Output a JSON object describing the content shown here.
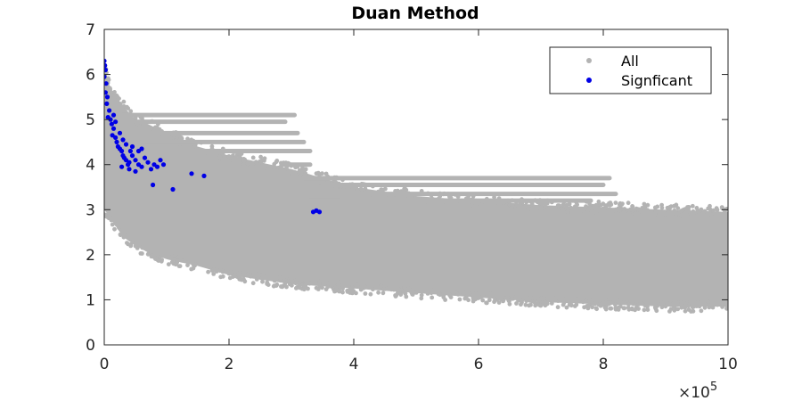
{
  "chart_data": {
    "type": "scatter",
    "title": "Duan Method",
    "xlabel": "",
    "ylabel": "",
    "xlim": [
      0,
      10
    ],
    "ylim": [
      0,
      7
    ],
    "x_ticks": [
      "0",
      "2",
      "4",
      "6",
      "8",
      "10"
    ],
    "y_ticks": [
      "0",
      "1",
      "2",
      "3",
      "4",
      "5",
      "6",
      "7"
    ],
    "x_multiplier": "×10",
    "x_multiplier_exponent": "5",
    "legend_position": "top-right",
    "grid": false,
    "series": [
      {
        "name": "All",
        "color": "#b3b3b3",
        "envelope": {
          "x": [
            0,
            0.05,
            0.1,
            0.2,
            0.3,
            0.5,
            0.7,
            1.0,
            1.5,
            2.0,
            3.0,
            4.0,
            5.0,
            6.0,
            7.0,
            8.0,
            9.0,
            10.0
          ],
          "upper": [
            6.4,
            5.9,
            5.7,
            5.5,
            5.3,
            5.0,
            4.9,
            4.7,
            4.4,
            4.2,
            3.9,
            3.5,
            3.3,
            3.2,
            3.1,
            3.05,
            3.0,
            2.95
          ],
          "lower": [
            3.0,
            2.9,
            2.8,
            2.6,
            2.4,
            2.2,
            2.05,
            1.9,
            1.75,
            1.55,
            1.35,
            1.25,
            1.15,
            1.05,
            0.95,
            0.9,
            0.85,
            0.85
          ]
        },
        "streaks": [
          {
            "x": [
              0.3,
              3.05
            ],
            "y": 5.1
          },
          {
            "x": [
              0.5,
              2.9
            ],
            "y": 4.95
          },
          {
            "x": [
              0.4,
              3.1
            ],
            "y": 4.7
          },
          {
            "x": [
              0.6,
              3.2
            ],
            "y": 4.5
          },
          {
            "x": [
              0.8,
              3.3
            ],
            "y": 4.3
          },
          {
            "x": [
              2.9,
              3.3
            ],
            "y": 4.0
          },
          {
            "x": [
              3.2,
              8.1
            ],
            "y": 3.7
          },
          {
            "x": [
              3.5,
              8.0
            ],
            "y": 3.55
          },
          {
            "x": [
              3.6,
              8.2
            ],
            "y": 3.35
          },
          {
            "x": [
              3.3,
              7.8
            ],
            "y": 3.2
          }
        ]
      },
      {
        "name": "Signficant",
        "color": "#0000e6",
        "points": [
          [
            0.0,
            6.3
          ],
          [
            0.01,
            6.2
          ],
          [
            0.02,
            6.1
          ],
          [
            0.0,
            5.95
          ],
          [
            0.03,
            5.8
          ],
          [
            0.02,
            5.6
          ],
          [
            0.05,
            5.5
          ],
          [
            0.04,
            5.35
          ],
          [
            0.08,
            5.2
          ],
          [
            0.06,
            5.05
          ],
          [
            0.1,
            5.0
          ],
          [
            0.12,
            4.9
          ],
          [
            0.15,
            4.8
          ],
          [
            0.13,
            4.65
          ],
          [
            0.18,
            4.6
          ],
          [
            0.2,
            4.5
          ],
          [
            0.22,
            4.4
          ],
          [
            0.25,
            4.35
          ],
          [
            0.28,
            4.3
          ],
          [
            0.3,
            4.2
          ],
          [
            0.32,
            4.15
          ],
          [
            0.35,
            4.1
          ],
          [
            0.38,
            4.0
          ],
          [
            0.4,
            4.05
          ],
          [
            0.42,
            4.3
          ],
          [
            0.45,
            4.2
          ],
          [
            0.5,
            4.1
          ],
          [
            0.55,
            4.0
          ],
          [
            0.6,
            3.95
          ],
          [
            0.65,
            4.15
          ],
          [
            0.7,
            4.05
          ],
          [
            0.75,
            3.9
          ],
          [
            0.8,
            4.0
          ],
          [
            0.85,
            3.95
          ],
          [
            0.9,
            4.1
          ],
          [
            0.95,
            4.0
          ],
          [
            0.15,
            5.1
          ],
          [
            0.18,
            4.95
          ],
          [
            0.25,
            4.7
          ],
          [
            0.3,
            4.55
          ],
          [
            0.35,
            4.45
          ],
          [
            0.45,
            4.4
          ],
          [
            0.55,
            4.3
          ],
          [
            0.6,
            4.35
          ],
          [
            0.5,
            3.85
          ],
          [
            0.4,
            3.9
          ],
          [
            0.28,
            3.95
          ],
          [
            0.78,
            3.55
          ],
          [
            1.1,
            3.45
          ],
          [
            1.4,
            3.8
          ],
          [
            1.6,
            3.75
          ],
          [
            3.35,
            2.95
          ],
          [
            3.4,
            2.98
          ],
          [
            3.45,
            2.95
          ]
        ]
      }
    ]
  }
}
